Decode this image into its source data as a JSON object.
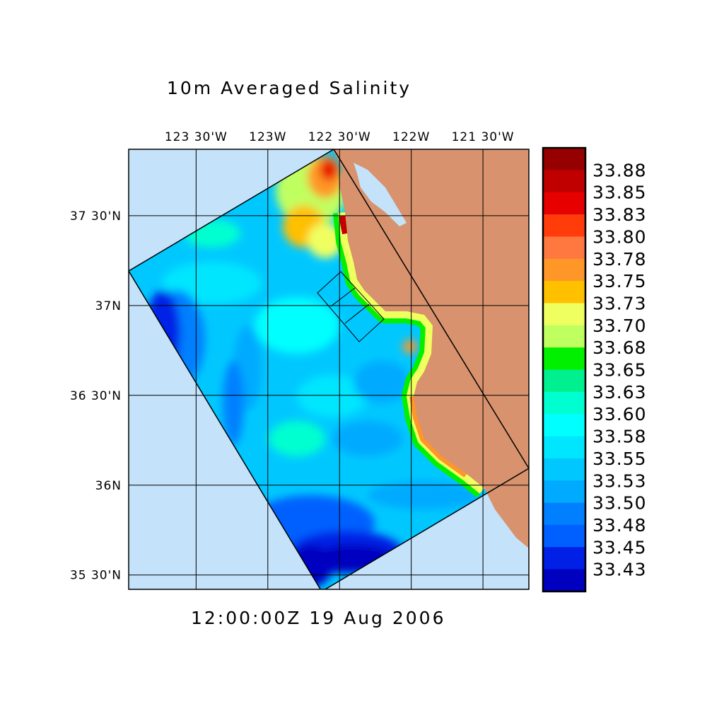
{
  "title": "10m Averaged Salinity",
  "time_label": "12:00:00Z  19 Aug 2006",
  "map": {
    "lon_range": [
      -123.97,
      -121.18
    ],
    "lat_range": [
      35.42,
      37.87
    ],
    "lon_ticks": [
      {
        "value": -123.5,
        "label": "123 30'W"
      },
      {
        "value": -123.0,
        "label": "123W"
      },
      {
        "value": -122.5,
        "label": "122 30'W"
      },
      {
        "value": -122.0,
        "label": "122W"
      },
      {
        "value": -121.5,
        "label": "121 30'W"
      }
    ],
    "lat_ticks": [
      {
        "value": 37.5,
        "label": "37 30'N"
      },
      {
        "value": 37.0,
        "label": "37N"
      },
      {
        "value": 36.5,
        "label": "36 30'N"
      },
      {
        "value": 36.0,
        "label": "36N"
      },
      {
        "value": 35.5,
        "label": "35 30'N"
      }
    ],
    "grid": true,
    "land_color": "#d8926e",
    "ocean_color": "#c4e2fa"
  },
  "colorbar": {
    "levels": [
      "33.88",
      "33.85",
      "33.83",
      "33.80",
      "33.78",
      "33.75",
      "33.73",
      "33.70",
      "33.68",
      "33.65",
      "33.63",
      "33.60",
      "33.58",
      "33.55",
      "33.53",
      "33.50",
      "33.48",
      "33.45",
      "33.43"
    ],
    "colors": [
      "#960000",
      "#c00000",
      "#e60000",
      "#ff3c0a",
      "#ff7840",
      "#ff9628",
      "#ffc000",
      "#f0ff60",
      "#c0ff60",
      "#00f000",
      "#00f090",
      "#00ffd0",
      "#00ffff",
      "#00e6ff",
      "#00c8ff",
      "#00aaff",
      "#0080ff",
      "#0060ff",
      "#0020e6",
      "#0000c0"
    ]
  }
}
